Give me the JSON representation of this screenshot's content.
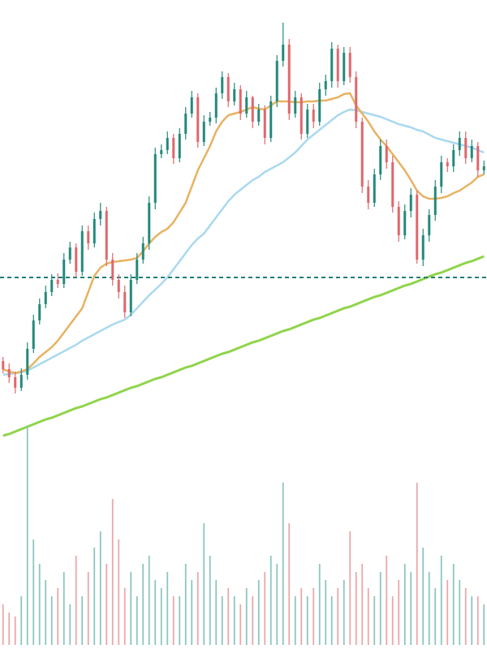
{
  "chart_data": [
    {
      "type": "candlestick",
      "ylim": [
        0,
        540
      ],
      "up_color": "#23897b",
      "down_color": "#e0676b",
      "open": [
        95,
        85,
        75,
        62,
        78,
        110,
        145,
        165,
        180,
        195,
        190,
        220,
        235,
        205,
        255,
        240,
        270,
        280,
        220,
        195,
        180,
        155,
        195,
        220,
        240,
        290,
        350,
        355,
        370,
        345,
        375,
        400,
        420,
        365,
        390,
        395,
        425,
        445,
        415,
        430,
        400,
        420,
        390,
        405,
        370,
        415,
        465,
        485,
        400,
        420,
        375,
        405,
        390,
        430,
        440,
        480,
        440,
        475,
        445,
        390,
        310,
        290,
        325,
        360,
        340,
        285,
        250,
        280,
        300,
        220,
        250,
        275,
        310,
        340,
        335,
        355,
        370,
        345,
        360,
        330
      ],
      "high": [
        100,
        92,
        82,
        86,
        118,
        152,
        172,
        188,
        202,
        203,
        228,
        242,
        240,
        262,
        262,
        278,
        290,
        285,
        228,
        202,
        188,
        202,
        228,
        248,
        298,
        358,
        362,
        378,
        375,
        382,
        408,
        428,
        425,
        398,
        402,
        432,
        452,
        450,
        438,
        435,
        428,
        422,
        412,
        410,
        422,
        472,
        512,
        492,
        428,
        425,
        412,
        412,
        438,
        448,
        488,
        485,
        482,
        482,
        452,
        395,
        318,
        332,
        368,
        368,
        348,
        292,
        288,
        308,
        305,
        258,
        282,
        318,
        348,
        345,
        362,
        378,
        378,
        368,
        365,
        342
      ],
      "low": [
        80,
        68,
        55,
        58,
        72,
        105,
        140,
        160,
        175,
        185,
        185,
        215,
        198,
        200,
        232,
        235,
        262,
        212,
        188,
        172,
        148,
        150,
        190,
        215,
        232,
        282,
        345,
        350,
        338,
        340,
        368,
        395,
        358,
        360,
        385,
        388,
        418,
        408,
        410,
        392,
        395,
        382,
        385,
        362,
        365,
        408,
        458,
        392,
        395,
        368,
        370,
        382,
        385,
        422,
        432,
        432,
        435,
        438,
        382,
        302,
        282,
        285,
        318,
        332,
        278,
        242,
        245,
        272,
        215,
        212,
        242,
        268,
        302,
        328,
        328,
        348,
        338,
        340,
        322,
        325
      ],
      "close": [
        85,
        75,
        62,
        78,
        110,
        145,
        165,
        180,
        195,
        190,
        220,
        235,
        205,
        255,
        240,
        270,
        280,
        220,
        195,
        180,
        155,
        195,
        220,
        240,
        290,
        350,
        355,
        370,
        345,
        375,
        400,
        420,
        365,
        390,
        395,
        425,
        445,
        415,
        430,
        400,
        420,
        390,
        405,
        370,
        415,
        465,
        485,
        400,
        420,
        375,
        405,
        390,
        430,
        440,
        480,
        440,
        475,
        445,
        390,
        310,
        290,
        325,
        360,
        340,
        285,
        250,
        280,
        300,
        220,
        250,
        275,
        310,
        340,
        335,
        355,
        370,
        345,
        360,
        330,
        335
      ],
      "overlays": [
        {
          "color": "#8fd44a",
          "values": [
            3,
            5,
            8,
            11,
            14,
            17,
            20,
            23,
            25,
            28,
            31,
            34,
            37,
            39,
            42,
            45,
            48,
            50,
            53,
            56,
            59,
            62,
            64,
            67,
            70,
            73,
            75,
            78,
            81,
            84,
            87,
            89,
            92,
            95,
            98,
            101,
            104,
            106,
            109,
            112,
            115,
            118,
            120,
            123,
            126,
            129,
            132,
            134,
            137,
            140,
            143,
            146,
            148,
            151,
            154,
            157,
            160,
            162,
            165,
            168,
            171,
            174,
            176,
            179,
            182,
            185,
            188,
            190,
            193,
            196,
            199,
            202,
            204,
            207,
            210,
            213,
            216,
            218,
            221,
            224
          ]
        },
        {
          "color": "#a9d9ef",
          "values": [
            78,
            79,
            80,
            81,
            83,
            87,
            91,
            95,
            99,
            103,
            107,
            111,
            115,
            120,
            124,
            128,
            132,
            136,
            140,
            143,
            146,
            152,
            160,
            168,
            176,
            183,
            190,
            198,
            208,
            218,
            228,
            238,
            246,
            252,
            262,
            272,
            282,
            292,
            300,
            306,
            312,
            318,
            322,
            328,
            332,
            336,
            340,
            346,
            352,
            360,
            368,
            374,
            380,
            386,
            392,
            398,
            402,
            405,
            404,
            402,
            400,
            398,
            396,
            393,
            390,
            387,
            385,
            383,
            380,
            378,
            374,
            370,
            368,
            366,
            364,
            362,
            360,
            358,
            355,
            352
          ]
        },
        {
          "color": "#e8b262",
          "values": [
            85,
            82,
            80,
            82,
            85,
            92,
            100,
            106,
            112,
            120,
            130,
            140,
            150,
            160,
            180,
            200,
            210,
            215,
            217,
            218,
            219,
            220,
            222,
            230,
            240,
            248,
            254,
            258,
            266,
            278,
            290,
            310,
            330,
            345,
            360,
            378,
            390,
            398,
            400,
            402,
            405,
            408,
            406,
            405,
            410,
            415,
            415,
            415,
            414,
            414,
            415,
            415,
            416,
            416,
            418,
            420,
            424,
            425,
            410,
            400,
            390,
            378,
            368,
            360,
            350,
            340,
            330,
            318,
            305,
            298,
            295,
            295,
            296,
            298,
            302,
            305,
            310,
            315,
            322,
            325
          ]
        }
      ],
      "reference_line": {
        "value": 198,
        "color": "#1f7f74"
      }
    },
    {
      "type": "volume",
      "ylim": [
        0,
        280
      ],
      "up_color": "#8cc6c0",
      "down_color": "#eba7a9",
      "values": [
        50,
        40,
        35,
        60,
        270,
        130,
        100,
        80,
        60,
        70,
        90,
        50,
        110,
        60,
        90,
        120,
        140,
        100,
        180,
        130,
        70,
        90,
        60,
        100,
        110,
        80,
        70,
        90,
        60,
        60,
        100,
        80,
        90,
        150,
        110,
        80,
        60,
        70,
        60,
        50,
        70,
        60,
        80,
        90,
        110,
        100,
        200,
        150,
        60,
        70,
        60,
        70,
        100,
        80,
        60,
        70,
        80,
        140,
        90,
        100,
        70,
        60,
        90,
        110,
        60,
        80,
        100,
        90,
        200,
        120,
        90,
        70,
        110,
        80,
        100,
        80,
        70,
        60,
        60,
        50
      ]
    }
  ]
}
